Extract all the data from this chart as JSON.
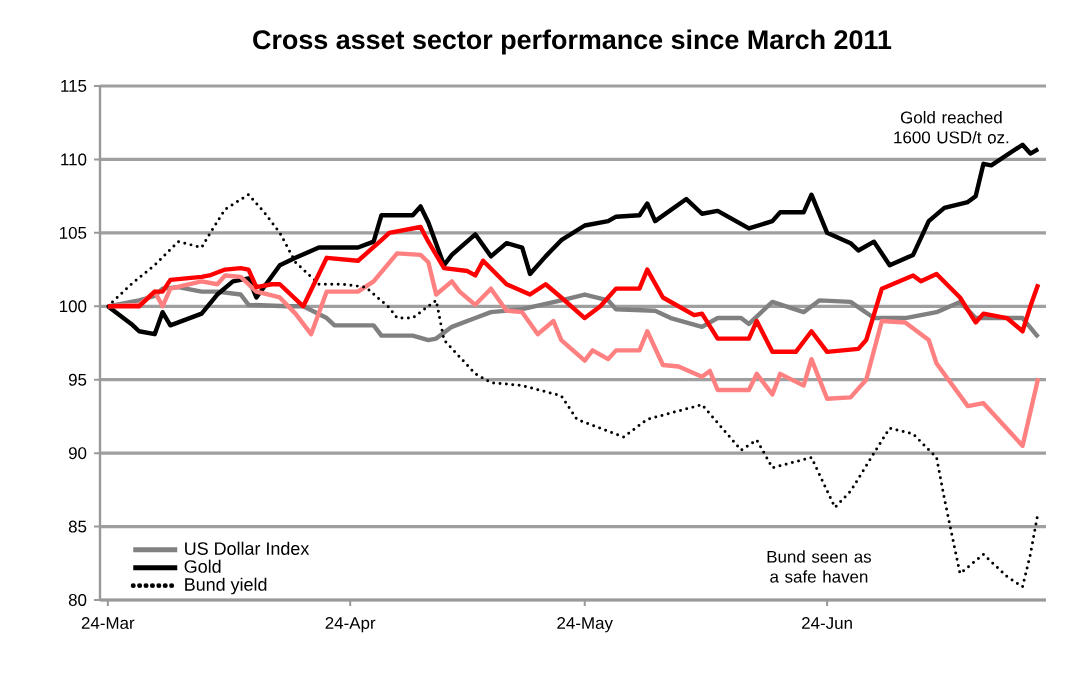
{
  "chart_data": {
    "type": "line",
    "title": "Cross asset sector performance since March 2011",
    "xlim": [
      "2011-03-23",
      "2011-07-22"
    ],
    "ylim": [
      80,
      115
    ],
    "xticks": [
      {
        "value": "2011-03-24",
        "label": "24-Mar"
      },
      {
        "value": "2011-04-24",
        "label": "24-Apr"
      },
      {
        "value": "2011-05-24",
        "label": "24-May"
      },
      {
        "value": "2011-06-24",
        "label": "24-Jun"
      }
    ],
    "yticks": [
      80,
      85,
      90,
      95,
      100,
      105,
      110,
      115
    ],
    "grid": "y",
    "legend": "bottom left",
    "marker": "none",
    "annotations": [
      "Gold reached 1600 USD/t oz.",
      "Bund seen as a safe haven"
    ],
    "series": [
      {
        "name": "US Dollar Index",
        "color": "#808080",
        "line_style": "solid",
        "x": [
          "2011-03-24",
          "2011-03-28",
          "2011-03-30",
          "2011-03-31",
          "2011-04-02",
          "2011-04-05",
          "2011-04-07",
          "2011-04-10",
          "2011-04-11",
          "2011-04-16",
          "2011-04-18",
          "2011-04-21",
          "2011-04-22",
          "2011-04-27",
          "2011-04-28",
          "2011-05-02",
          "2011-05-04",
          "2011-05-05",
          "2011-05-07",
          "2011-05-10",
          "2011-05-12",
          "2011-05-16",
          "2011-05-21",
          "2011-05-24",
          "2011-05-27",
          "2011-05-28",
          "2011-06-02",
          "2011-06-04",
          "2011-06-08",
          "2011-06-10",
          "2011-06-13",
          "2011-06-14",
          "2011-06-17",
          "2011-06-21",
          "2011-06-23",
          "2011-06-27",
          "2011-06-30",
          "2011-07-04",
          "2011-07-08",
          "2011-07-11",
          "2011-07-13",
          "2011-07-19",
          "2011-07-21"
        ],
        "values": [
          100,
          100.4,
          100.7,
          101.2,
          101.3,
          101,
          101,
          100.8,
          100.1,
          100,
          100,
          99.2,
          98.7,
          98.7,
          98,
          98,
          97.7,
          97.8,
          98.6,
          99.2,
          99.6,
          99.8,
          100.4,
          100.8,
          100.4,
          99.8,
          99.7,
          99.2,
          98.6,
          99.2,
          99.2,
          98.8,
          100.3,
          99.6,
          100.4,
          100.3,
          99.2,
          99.2,
          99.6,
          100.3,
          99.2,
          99.2,
          97.9
        ]
      },
      {
        "name": "Gold",
        "color": "#000000",
        "line_style": "solid",
        "x": [
          "2011-03-24",
          "2011-03-27",
          "2011-03-28",
          "2011-03-30",
          "2011-03-31",
          "2011-04-01",
          "2011-04-05",
          "2011-04-07",
          "2011-04-09",
          "2011-04-11",
          "2011-04-12",
          "2011-04-15",
          "2011-04-17",
          "2011-04-20",
          "2011-04-25",
          "2011-04-27",
          "2011-04-28",
          "2011-05-02",
          "2011-05-03",
          "2011-05-04",
          "2011-05-06",
          "2011-05-07",
          "2011-05-10",
          "2011-05-12",
          "2011-05-14",
          "2011-05-16",
          "2011-05-17",
          "2011-05-19",
          "2011-05-21",
          "2011-05-24",
          "2011-05-27",
          "2011-05-28",
          "2011-05-31",
          "2011-06-01",
          "2011-06-02",
          "2011-06-06",
          "2011-06-08",
          "2011-06-10",
          "2011-06-14",
          "2011-06-17",
          "2011-06-18",
          "2011-06-21",
          "2011-06-22",
          "2011-06-24",
          "2011-06-27",
          "2011-06-28",
          "2011-06-30",
          "2011-07-02",
          "2011-07-05",
          "2011-07-07",
          "2011-07-09",
          "2011-07-12",
          "2011-07-13",
          "2011-07-14",
          "2011-07-15",
          "2011-07-19",
          "2011-07-20",
          "2011-07-21"
        ],
        "values": [
          100,
          98.8,
          98.3,
          98.1,
          99.6,
          98.7,
          99.5,
          100.8,
          101.7,
          101.9,
          100.6,
          102.8,
          103.3,
          104,
          104,
          104.4,
          106.2,
          106.2,
          106.8,
          105.7,
          102.8,
          103.5,
          104.9,
          103.4,
          104.3,
          104,
          102.2,
          103.4,
          104.5,
          105.5,
          105.8,
          106.1,
          106.2,
          107,
          105.8,
          107.3,
          106.3,
          106.5,
          105.3,
          105.8,
          106.4,
          106.4,
          107.6,
          105,
          104.3,
          103.8,
          104.4,
          102.8,
          103.5,
          105.8,
          106.7,
          107.1,
          107.5,
          109.7,
          109.6,
          111,
          110.4,
          110.7
        ]
      },
      {
        "color": "#ff8080",
        "line_style": "solid",
        "x": [
          "2011-03-24",
          "2011-03-28",
          "2011-03-30",
          "2011-03-31",
          "2011-04-01",
          "2011-04-05",
          "2011-04-07",
          "2011-04-08",
          "2011-04-10",
          "2011-04-11",
          "2011-04-12",
          "2011-04-15",
          "2011-04-17",
          "2011-04-19",
          "2011-04-21",
          "2011-04-25",
          "2011-04-27",
          "2011-04-30",
          "2011-05-03",
          "2011-05-04",
          "2011-05-05",
          "2011-05-07",
          "2011-05-08",
          "2011-05-10",
          "2011-05-12",
          "2011-05-14",
          "2011-05-16",
          "2011-05-18",
          "2011-05-20",
          "2011-05-21",
          "2011-05-24",
          "2011-05-25",
          "2011-05-27",
          "2011-05-28",
          "2011-05-31",
          "2011-06-01",
          "2011-06-03",
          "2011-06-05",
          "2011-06-08",
          "2011-06-09",
          "2011-06-10",
          "2011-06-14",
          "2011-06-15",
          "2011-06-17",
          "2011-06-18",
          "2011-06-21",
          "2011-06-22",
          "2011-06-24",
          "2011-06-27",
          "2011-06-29",
          "2011-07-01",
          "2011-07-04",
          "2011-07-07",
          "2011-07-08",
          "2011-07-12",
          "2011-07-14",
          "2011-07-19",
          "2011-07-21"
        ],
        "values": [
          100,
          100.1,
          101,
          100,
          101.2,
          101.7,
          101.5,
          102.1,
          102,
          101.5,
          101,
          100.6,
          99.5,
          98.1,
          101,
          101,
          101.7,
          103.6,
          103.5,
          103,
          100.8,
          101.7,
          101,
          100.1,
          101.2,
          99.7,
          99.6,
          98.1,
          99,
          97.7,
          96.3,
          97,
          96.4,
          97,
          97,
          98.3,
          96,
          95.9,
          95.2,
          95.6,
          94.3,
          94.3,
          95.4,
          94,
          95.4,
          94.6,
          96.4,
          93.7,
          93.8,
          95,
          99,
          98.9,
          97.7,
          96.1,
          93.2,
          93.4,
          90.5,
          95.1
        ]
      },
      {
        "name": "Bund yield",
        "color": "#000000",
        "line_style": "dotted",
        "x": [
          "2011-03-24",
          "2011-03-27",
          "2011-03-30",
          "2011-04-02",
          "2011-04-05",
          "2011-04-06",
          "2011-04-08",
          "2011-04-11",
          "2011-04-13",
          "2011-04-15",
          "2011-04-17",
          "2011-04-20",
          "2011-04-23",
          "2011-04-26",
          "2011-04-29",
          "2011-04-30",
          "2011-05-02",
          "2011-05-05",
          "2011-05-06",
          "2011-05-10",
          "2011-05-12",
          "2011-05-16",
          "2011-05-21",
          "2011-05-23",
          "2011-05-29",
          "2011-06-01",
          "2011-06-08",
          "2011-06-13",
          "2011-06-15",
          "2011-06-17",
          "2011-06-22",
          "2011-06-25",
          "2011-06-27",
          "2011-06-30",
          "2011-07-02",
          "2011-07-05",
          "2011-07-08",
          "2011-07-09",
          "2011-07-11",
          "2011-07-14",
          "2011-07-17",
          "2011-07-19",
          "2011-07-20",
          "2011-07-21"
        ],
        "values": [
          100,
          101.5,
          102.8,
          104.4,
          104,
          104.9,
          106.6,
          107.6,
          106.4,
          105,
          103,
          101.5,
          101.5,
          101.3,
          99.9,
          99.2,
          99.2,
          100.4,
          97.7,
          95.4,
          94.8,
          94.6,
          93.9,
          92.3,
          91.1,
          92.3,
          93.3,
          90.2,
          90.9,
          89,
          89.7,
          86.3,
          87.4,
          90,
          91.7,
          91.3,
          89.7,
          86.9,
          81.8,
          83.1,
          81.6,
          80.9,
          83.1,
          86
        ]
      },
      {
        "color": "#ff0000",
        "line_style": "solid",
        "x": [
          "2011-03-24",
          "2011-03-28",
          "2011-03-30",
          "2011-03-31",
          "2011-04-01",
          "2011-04-05",
          "2011-04-06",
          "2011-04-07",
          "2011-04-08",
          "2011-04-10",
          "2011-04-11",
          "2011-04-12",
          "2011-04-14",
          "2011-04-15",
          "2011-04-18",
          "2011-04-21",
          "2011-04-25",
          "2011-04-28",
          "2011-04-29",
          "2011-05-03",
          "2011-05-04",
          "2011-05-06",
          "2011-05-09",
          "2011-05-10",
          "2011-05-11",
          "2011-05-14",
          "2011-05-17",
          "2011-05-19",
          "2011-05-21",
          "2011-05-24",
          "2011-05-26",
          "2011-05-28",
          "2011-05-31",
          "2011-06-01",
          "2011-06-03",
          "2011-06-07",
          "2011-06-08",
          "2011-06-10",
          "2011-06-14",
          "2011-06-15",
          "2011-06-17",
          "2011-06-20",
          "2011-06-22",
          "2011-06-24",
          "2011-06-28",
          "2011-06-29",
          "2011-07-01",
          "2011-07-05",
          "2011-07-06",
          "2011-07-08",
          "2011-07-11",
          "2011-07-13",
          "2011-07-14",
          "2011-07-17",
          "2011-07-19",
          "2011-07-20",
          "2011-07-21"
        ],
        "values": [
          100,
          100,
          101,
          101,
          101.8,
          102,
          102.1,
          102.3,
          102.5,
          102.6,
          102.5,
          101.3,
          101.5,
          101.5,
          100,
          103.3,
          103.1,
          104.5,
          105,
          105.4,
          104.4,
          102.6,
          102.4,
          102.1,
          103.1,
          101.5,
          100.8,
          101.5,
          100.6,
          99.2,
          100,
          101.2,
          101.2,
          102.5,
          100.6,
          99.4,
          99.5,
          97.8,
          97.8,
          99,
          96.9,
          96.9,
          98.3,
          96.9,
          97.1,
          97.7,
          101.2,
          102.1,
          101.7,
          102.2,
          100.6,
          98.9,
          99.5,
          99.2,
          98.3,
          100,
          101.5
        ]
      }
    ]
  }
}
